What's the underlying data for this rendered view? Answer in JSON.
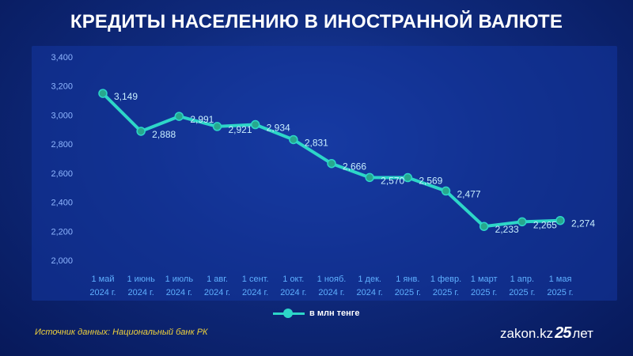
{
  "title": "КРЕДИТЫ НАСЕЛЕНИЮ В ИНОСТРАННОЙ ВАЛЮТЕ",
  "source": "Источник данных: Национальный банк РК",
  "brand": {
    "name": "zakon.kz",
    "mark": "25",
    "suffix": "лет"
  },
  "colors": {
    "line": "#2dd6c8",
    "marker": "#27a88e",
    "label": "#c8efff",
    "background": "#0f2a7d"
  },
  "chart_data": {
    "type": "line",
    "categories": [
      [
        "1 май",
        "2024 г."
      ],
      [
        "1 июнь",
        "2024 г."
      ],
      [
        "1 июль",
        "2024 г."
      ],
      [
        "1 авг.",
        "2024 г."
      ],
      [
        "1 сент.",
        "2024 г."
      ],
      [
        "1 окт.",
        "2024 г."
      ],
      [
        "1 нояб.",
        "2024 г."
      ],
      [
        "1 дек.",
        "2024 г."
      ],
      [
        "1 янв.",
        "2025 г."
      ],
      [
        "1 февр.",
        "2025 г."
      ],
      [
        "1 март",
        "2025 г."
      ],
      [
        "1 апр.",
        "2025 г."
      ],
      [
        "1 мая",
        "2025 г."
      ]
    ],
    "series": [
      {
        "name": "в млн тенге",
        "values": [
          3149,
          2888,
          2991,
          2921,
          2934,
          2831,
          2666,
          2570,
          2569,
          2477,
          2233,
          2265,
          2274
        ]
      }
    ],
    "data_labels": [
      "3,149",
      "2,888",
      "2,991",
      "2,921",
      "2,934",
      "2,831",
      "2,666",
      "2,570",
      "2,569",
      "2,477",
      "2,233",
      "2,265",
      "2,274"
    ],
    "yticks": [
      "2,000",
      "2,200",
      "2,400",
      "2,600",
      "2,800",
      "3,000",
      "3,200",
      "3,400"
    ],
    "ylim": [
      2000,
      3400
    ],
    "grid": false,
    "legend": "bottom-center"
  }
}
